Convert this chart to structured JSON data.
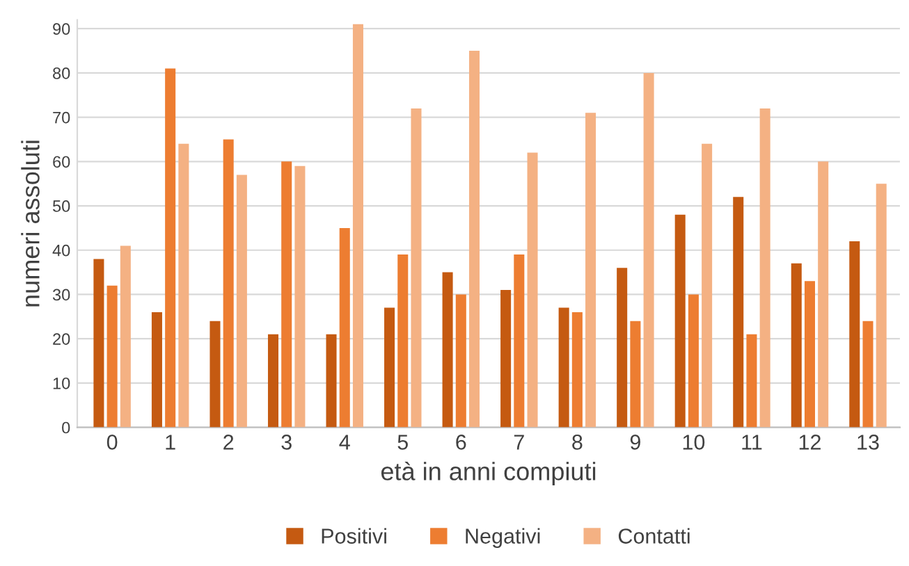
{
  "chart_data": {
    "type": "bar",
    "xlabel": "età in anni compiuti",
    "ylabel": "numeri assoluti",
    "categories": [
      "0",
      "1",
      "2",
      "3",
      "4",
      "5",
      "6",
      "7",
      "8",
      "9",
      "10",
      "11",
      "12",
      "13"
    ],
    "series": [
      {
        "name": "Positivi",
        "color": "#c55a11",
        "values": [
          38,
          26,
          24,
          21,
          21,
          27,
          35,
          31,
          27,
          36,
          48,
          52,
          37,
          42
        ]
      },
      {
        "name": "Negativi",
        "color": "#ed7d31",
        "values": [
          32,
          81,
          65,
          60,
          45,
          39,
          30,
          39,
          26,
          24,
          30,
          21,
          33,
          24
        ]
      },
      {
        "name": "Contatti",
        "color": "#f4b183",
        "values": [
          41,
          64,
          57,
          59,
          91,
          72,
          85,
          62,
          71,
          80,
          64,
          72,
          60,
          55
        ]
      }
    ],
    "ylim": [
      0,
      92
    ],
    "yticks": [
      0,
      10,
      20,
      30,
      40,
      50,
      60,
      70,
      80,
      90
    ],
    "grid": "y",
    "legend": "bottom"
  }
}
